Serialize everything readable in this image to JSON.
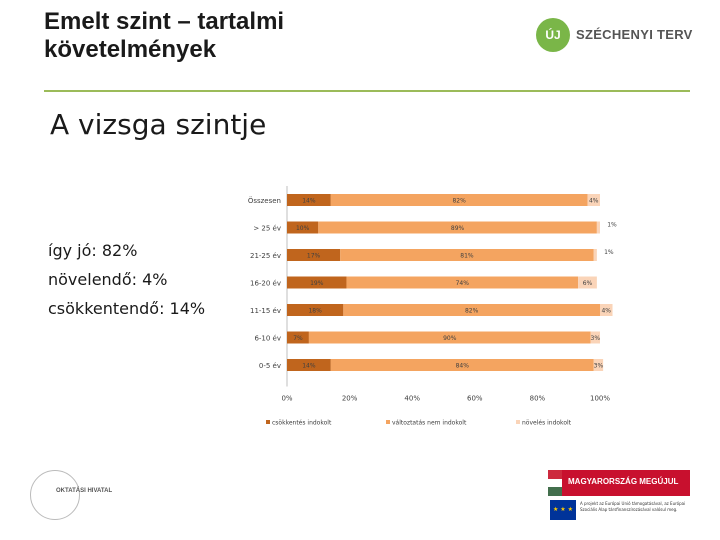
{
  "header": {
    "title_line1": "Emelt szint – tartalmi",
    "title_line2": "követelmények",
    "logo_icon_text": "ÚJ",
    "logo_text": "SZÉCHENYI TERV"
  },
  "subtitle": "A vizsga szintje",
  "summary": {
    "line1": "így jó: 82%",
    "line2": "növelendő: 4%",
    "line3": "csökkentendő: 14%"
  },
  "chart_data": {
    "type": "bar",
    "orientation": "horizontal",
    "stacked": "percent",
    "categories": [
      "Összesen",
      "> 25 év",
      "21-25 év",
      "16-20 év",
      "11-15 év",
      "6-10 év",
      "0-5 év"
    ],
    "series": [
      {
        "name": "csökkentés indokolt",
        "color": "#c0651d",
        "values": [
          14,
          10,
          17,
          19,
          18,
          7,
          14
        ],
        "labels": [
          "14%",
          "10%",
          "17%",
          "19%",
          "18%",
          "7%",
          "14%"
        ]
      },
      {
        "name": "változtatás nem indokolt",
        "color": "#f4a460",
        "values": [
          82,
          89,
          81,
          74,
          82,
          90,
          84
        ],
        "labels": [
          "82%",
          "89%",
          "81%",
          "74%",
          "82%",
          "90%",
          "84%"
        ]
      },
      {
        "name": "növelés indokolt",
        "color": "#fad4b8",
        "values": [
          4,
          1,
          1,
          6,
          4,
          3,
          3
        ],
        "labels": [
          "4%",
          "1%",
          "1%",
          "6%",
          "4%",
          "3%",
          "3%"
        ]
      }
    ],
    "xlim": [
      0,
      100
    ],
    "xticks": [
      "0%",
      "20%",
      "40%",
      "60%",
      "80%",
      "100%"
    ],
    "legend_position": "bottom"
  },
  "footer": {
    "kt_text": "OKTATÁSI HIVATAL",
    "mm_text": "MAGYARORSZÁG MEGÚJUL",
    "eu_text": "A projekt az Európai Unió támogatásával, az Európai Szociális Alap társfinanszírozásával valósul meg."
  }
}
